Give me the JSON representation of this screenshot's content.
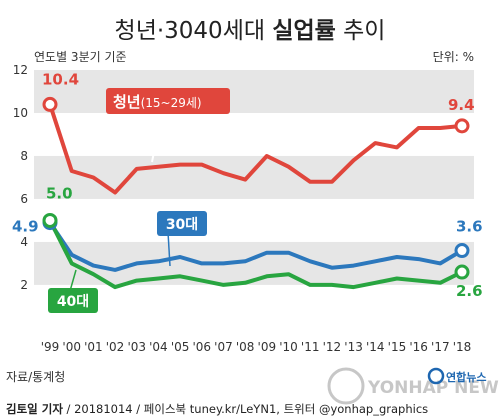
{
  "header": {
    "title_prefix": "청년·3040세대 ",
    "title_bold": "실업률",
    "title_suffix": " 추이"
  },
  "chart_data": {
    "type": "line",
    "title": "청년·3040세대 실업률 추이",
    "subtitle": "연도별 3분기 기준",
    "unit": "단위: %",
    "x": [
      "'99",
      "'00",
      "'01",
      "'02",
      "'03",
      "'04",
      "'05",
      "'06",
      "'07",
      "'08",
      "'09",
      "'10",
      "'11",
      "'12",
      "'13",
      "'14",
      "'15",
      "'16",
      "'17",
      "'18"
    ],
    "yticks": [
      2,
      4,
      6,
      8,
      10,
      12
    ],
    "ylim": [
      0.6,
      12.0
    ],
    "grid_bands": [
      [
        2,
        4
      ],
      [
        6,
        8
      ],
      [
        10,
        12
      ]
    ],
    "series": [
      {
        "name": "청년(15~29세)",
        "name_main": "청년",
        "name_sub": "(15~29세)",
        "color": "#e0463c",
        "values": [
          10.4,
          7.3,
          7.0,
          6.3,
          7.4,
          7.5,
          7.6,
          7.6,
          7.2,
          6.9,
          8.0,
          7.5,
          6.8,
          6.8,
          7.8,
          8.6,
          8.4,
          9.3,
          9.3,
          9.4
        ],
        "start_label": "10.4",
        "end_label": "9.4"
      },
      {
        "name": "30대",
        "color": "#2c78bd",
        "values": [
          4.9,
          3.4,
          2.9,
          2.7,
          3.0,
          3.1,
          3.3,
          3.0,
          3.0,
          3.1,
          3.5,
          3.5,
          3.1,
          2.8,
          2.9,
          3.1,
          3.3,
          3.2,
          3.0,
          3.6
        ],
        "start_label": "4.9",
        "end_label": "3.6"
      },
      {
        "name": "40대",
        "color": "#28a540",
        "values": [
          5.0,
          3.0,
          2.5,
          1.9,
          2.2,
          2.3,
          2.4,
          2.2,
          2.0,
          2.1,
          2.4,
          2.5,
          2.0,
          2.0,
          1.9,
          2.1,
          2.3,
          2.2,
          2.1,
          2.6
        ],
        "start_label": "5.0",
        "end_label": "2.6"
      }
    ]
  },
  "footer": {
    "source": "자료/통계청",
    "credit": "김토일 기자",
    "credit_rest": " / 20181014 / 페이스북 tuney.kr/LeYN1, 트위터 @yonhap_graphics"
  },
  "watermark": {
    "text": "YONHAP NEWS",
    "brand": "연합뉴스"
  },
  "colors": {
    "band": "#e6e6e6",
    "axis_text": "#333333"
  }
}
